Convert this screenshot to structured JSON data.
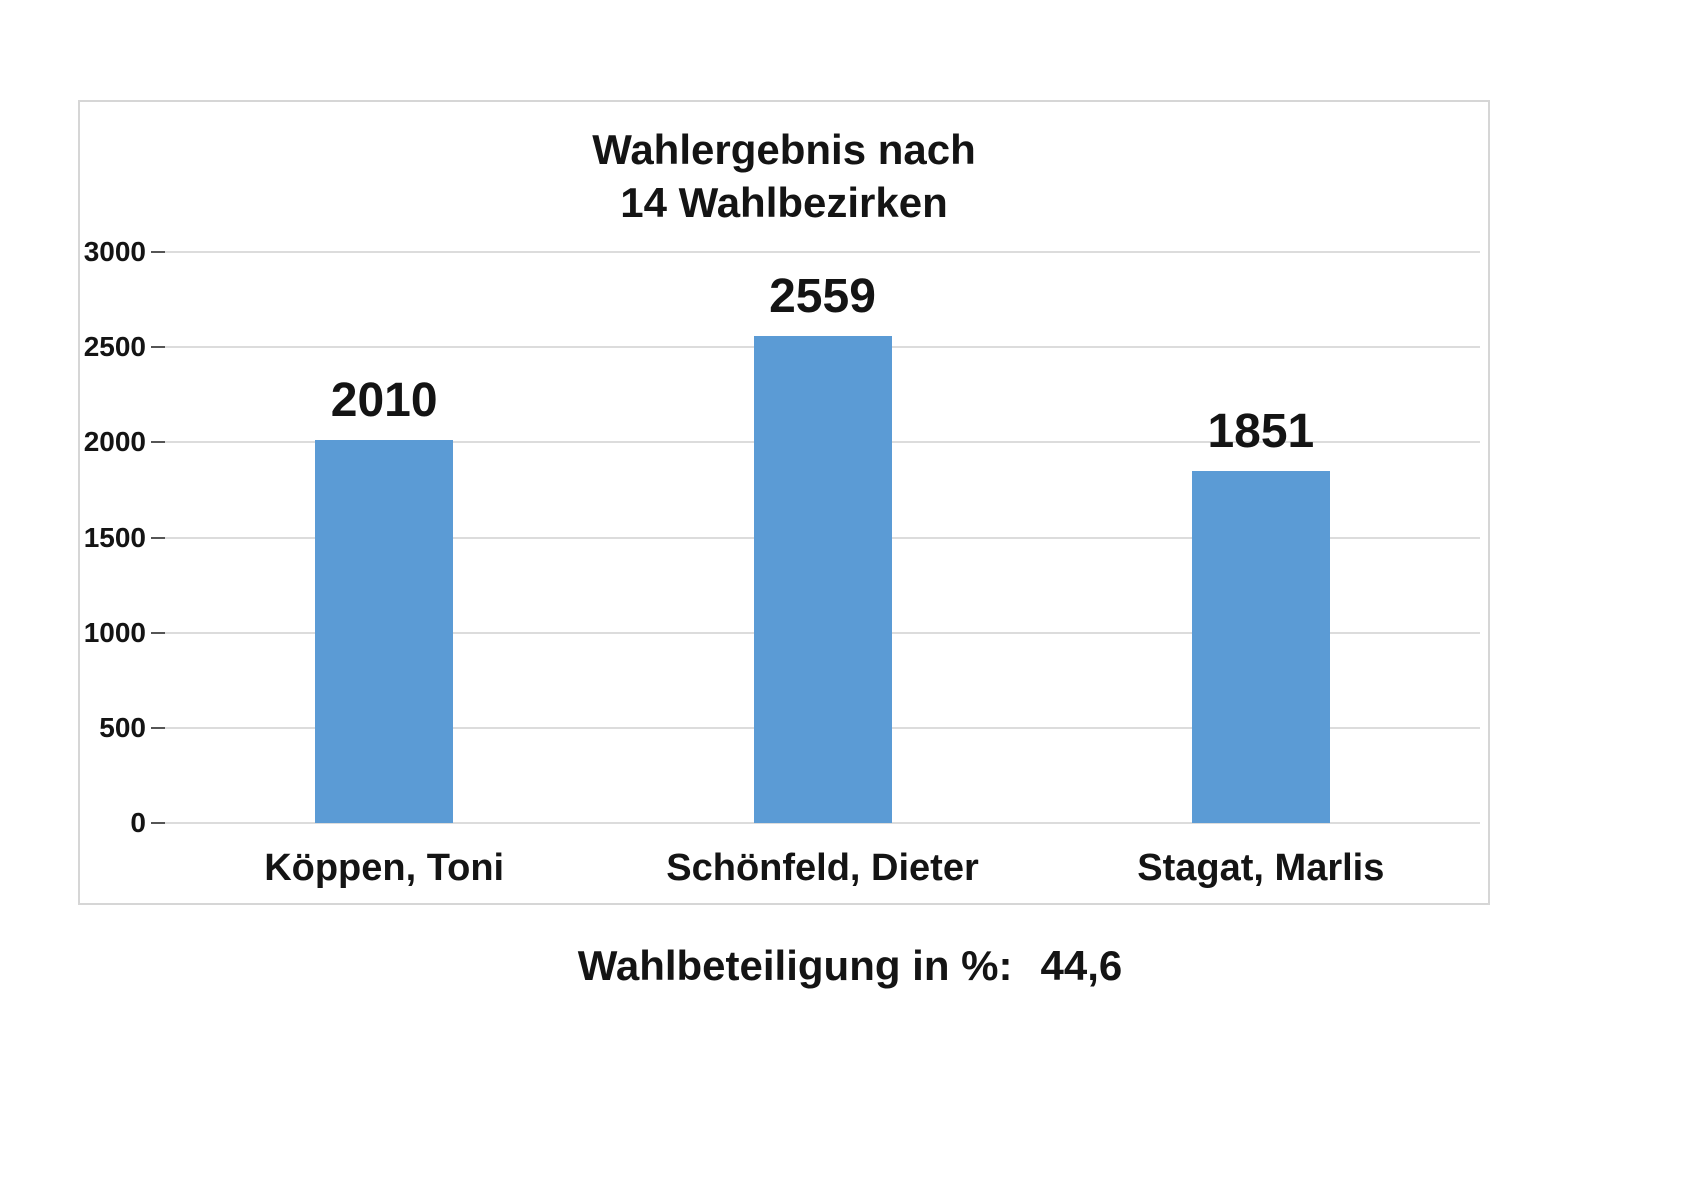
{
  "chart_data": {
    "type": "bar",
    "title": "Wahlergebnis nach 14 Wahlbezirken",
    "title_lines": [
      "Wahlergebnis nach",
      "14 Wahlbezirken"
    ],
    "categories": [
      "Köppen, Toni",
      "Schönfeld, Dieter",
      "Stagat, Marlis"
    ],
    "values": [
      2010,
      2559,
      1851
    ],
    "data_labels": [
      "2010",
      "2559",
      "1851"
    ],
    "ylim": [
      0,
      3000
    ],
    "yticks": [
      0,
      500,
      1000,
      1500,
      2000,
      2500,
      3000
    ],
    "grid": true,
    "legend": "none",
    "bar_color": "#5b9bd5",
    "annotation": "Wahlbeteiligung in %:  44,6"
  },
  "footer": {
    "label": "Wahlbeteiligung in %:",
    "value": "44,6"
  }
}
